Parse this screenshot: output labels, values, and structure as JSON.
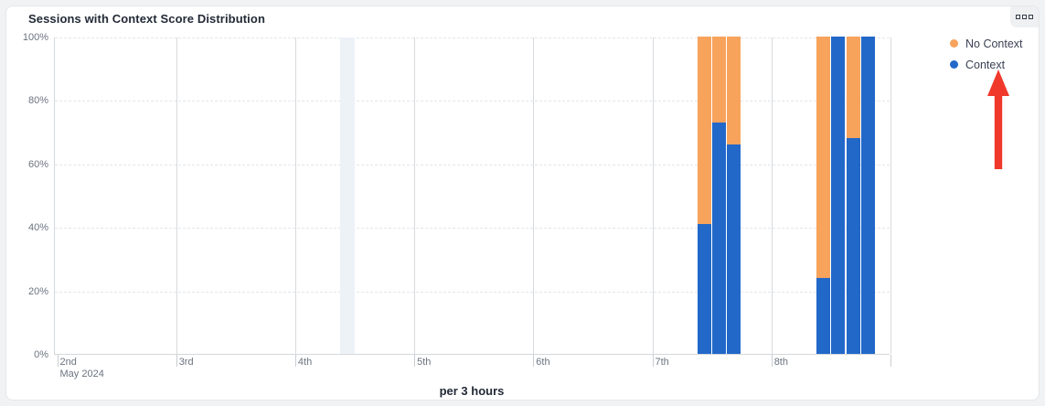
{
  "card": {
    "title": "Sessions with Context Score Distribution",
    "menu_button": {
      "icon": "more-options",
      "square_count": 3
    }
  },
  "chart_data": {
    "type": "bar",
    "stacked": true,
    "unit": "%",
    "title": "Sessions with Context Score Distribution",
    "xlabel": "per 3 hours",
    "x_axis": {
      "ticks": [
        "2nd",
        "3rd",
        "4th",
        "5th",
        "6th",
        "7th",
        "8th"
      ],
      "subtitle": "May 2024",
      "slots_per_day": 8
    },
    "y_axis": {
      "ticks": [
        "0%",
        "20%",
        "40%",
        "60%",
        "80%",
        "100%"
      ],
      "range": [
        0,
        100
      ],
      "grid": "dashed-horizontal"
    },
    "legend": {
      "position": "top-right",
      "items": [
        {
          "label": "No Context",
          "color": "#F7A35C"
        },
        {
          "label": "Context",
          "color": "#2268C9"
        }
      ]
    },
    "bars": [
      {
        "day": "7th",
        "slot": 3,
        "context_pct": 41,
        "no_context_pct": 59
      },
      {
        "day": "7th",
        "slot": 4,
        "context_pct": 73,
        "no_context_pct": 27
      },
      {
        "day": "7th",
        "slot": 5,
        "context_pct": 66,
        "no_context_pct": 34
      },
      {
        "day": "8th",
        "slot": 3,
        "context_pct": 24,
        "no_context_pct": 76
      },
      {
        "day": "8th",
        "slot": 4,
        "context_pct": 100,
        "no_context_pct": 0
      },
      {
        "day": "8th",
        "slot": 5,
        "context_pct": 68,
        "no_context_pct": 32
      },
      {
        "day": "8th",
        "slot": 6,
        "context_pct": 100,
        "no_context_pct": 0
      }
    ],
    "highlight_band": {
      "day": "4th",
      "slot": 3,
      "color": "#EDF2F7"
    }
  },
  "annotation": {
    "type": "arrow-up",
    "color": "#F0392B",
    "points_to": "Context"
  }
}
